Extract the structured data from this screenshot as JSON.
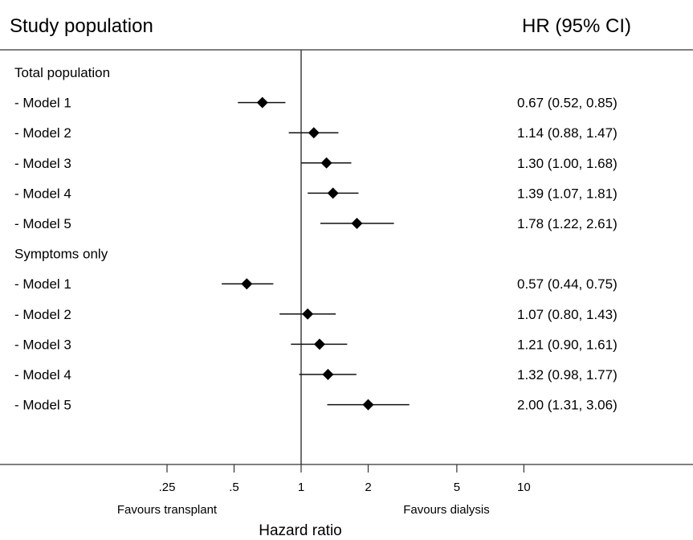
{
  "chart_data": {
    "type": "forest",
    "header_left": "Study population",
    "header_right": "HR (95% CI)",
    "xlabel": "Hazard ratio",
    "scale": "log",
    "reference_line": 1,
    "x_ticks": [
      {
        "value": 0.25,
        "label": ".25"
      },
      {
        "value": 0.5,
        "label": ".5"
      },
      {
        "value": 1,
        "label": "1"
      },
      {
        "value": 2,
        "label": "2"
      },
      {
        "value": 5,
        "label": "5"
      },
      {
        "value": 10,
        "label": "10"
      }
    ],
    "favours_left": "Favours transplant",
    "favours_right": "Favours dialysis",
    "groups": [
      {
        "name": "Total population",
        "rows": [
          {
            "label": "- Model 1",
            "hr": 0.67,
            "lo": 0.52,
            "hi": 0.85,
            "text": "0.67 (0.52, 0.85)"
          },
          {
            "label": "- Model 2",
            "hr": 1.14,
            "lo": 0.88,
            "hi": 1.47,
            "text": "1.14 (0.88, 1.47)"
          },
          {
            "label": "- Model 3",
            "hr": 1.3,
            "lo": 1.0,
            "hi": 1.68,
            "text": "1.30 (1.00, 1.68)"
          },
          {
            "label": "- Model 4",
            "hr": 1.39,
            "lo": 1.07,
            "hi": 1.81,
            "text": "1.39 (1.07, 1.81)"
          },
          {
            "label": "- Model 5",
            "hr": 1.78,
            "lo": 1.22,
            "hi": 2.61,
            "text": "1.78 (1.22, 2.61)"
          }
        ]
      },
      {
        "name": "Symptoms only",
        "rows": [
          {
            "label": "- Model 1",
            "hr": 0.57,
            "lo": 0.44,
            "hi": 0.75,
            "text": "0.57 (0.44, 0.75)"
          },
          {
            "label": "- Model 2",
            "hr": 1.07,
            "lo": 0.8,
            "hi": 1.43,
            "text": "1.07 (0.80, 1.43)"
          },
          {
            "label": "- Model 3",
            "hr": 1.21,
            "lo": 0.9,
            "hi": 1.61,
            "text": "1.21 (0.90, 1.61)"
          },
          {
            "label": "- Model 4",
            "hr": 1.32,
            "lo": 0.98,
            "hi": 1.77,
            "text": "1.32 (0.98, 1.77)"
          },
          {
            "label": "- Model 5",
            "hr": 2.0,
            "lo": 1.31,
            "hi": 3.06,
            "text": "2.00 (1.31, 3.06)"
          }
        ]
      }
    ]
  }
}
